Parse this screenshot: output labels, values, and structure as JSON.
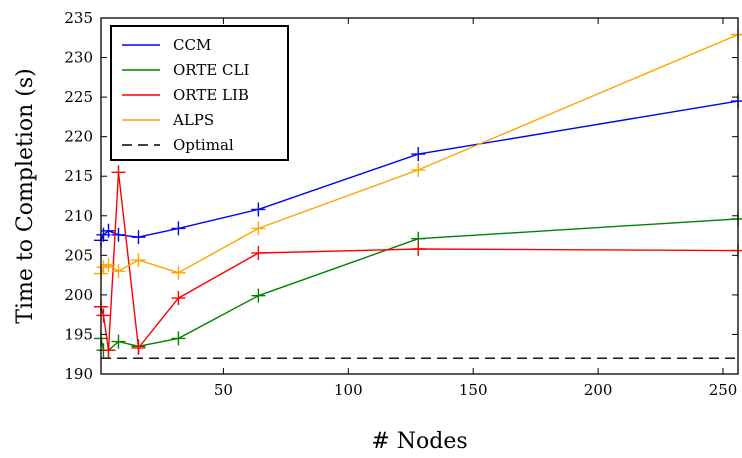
{
  "chart_data": {
    "type": "line",
    "xlabel": "# Nodes",
    "ylabel": "Time to Completion (s)",
    "xlim": [
      1,
      256
    ],
    "ylim": [
      190,
      235
    ],
    "xticks": [
      50,
      100,
      150,
      200,
      250
    ],
    "yticks": [
      190,
      195,
      200,
      205,
      210,
      215,
      220,
      225,
      230,
      235
    ],
    "grid": false,
    "legend_position": "top-left",
    "series": [
      {
        "name": "CCM",
        "color": "#0000ff",
        "marker": "+",
        "x": [
          1,
          2,
          4,
          8,
          16,
          32,
          64,
          128,
          256
        ],
        "y": [
          206.9,
          207.6,
          208.1,
          207.6,
          207.3,
          208.4,
          210.8,
          217.8,
          224.5
        ]
      },
      {
        "name": "ORTE CLI",
        "color": "#008000",
        "marker": "+",
        "x": [
          1,
          2,
          4,
          8,
          16,
          32,
          64,
          128,
          256
        ],
        "y": [
          194.5,
          193.0,
          193.0,
          194.1,
          193.5,
          194.5,
          199.9,
          207.1,
          209.6
        ]
      },
      {
        "name": "ORTE LIB",
        "color": "#ff0000",
        "marker": "+",
        "x": [
          1,
          2,
          4,
          8,
          16,
          32,
          64,
          128,
          256
        ],
        "y": [
          198.5,
          197.4,
          193.0,
          215.5,
          193.3,
          199.6,
          205.3,
          205.8,
          205.6
        ]
      },
      {
        "name": "ALPS",
        "color": "#ffa500",
        "marker": "+",
        "x": [
          1,
          2,
          4,
          8,
          16,
          32,
          64,
          128,
          256
        ],
        "y": [
          202.7,
          203.5,
          203.8,
          203.0,
          204.4,
          202.8,
          208.4,
          215.8,
          232.9
        ]
      },
      {
        "name": "Optimal",
        "color": "#000000",
        "dash": true,
        "marker": "",
        "x": [
          1,
          256
        ],
        "y": [
          192,
          192
        ]
      }
    ]
  }
}
